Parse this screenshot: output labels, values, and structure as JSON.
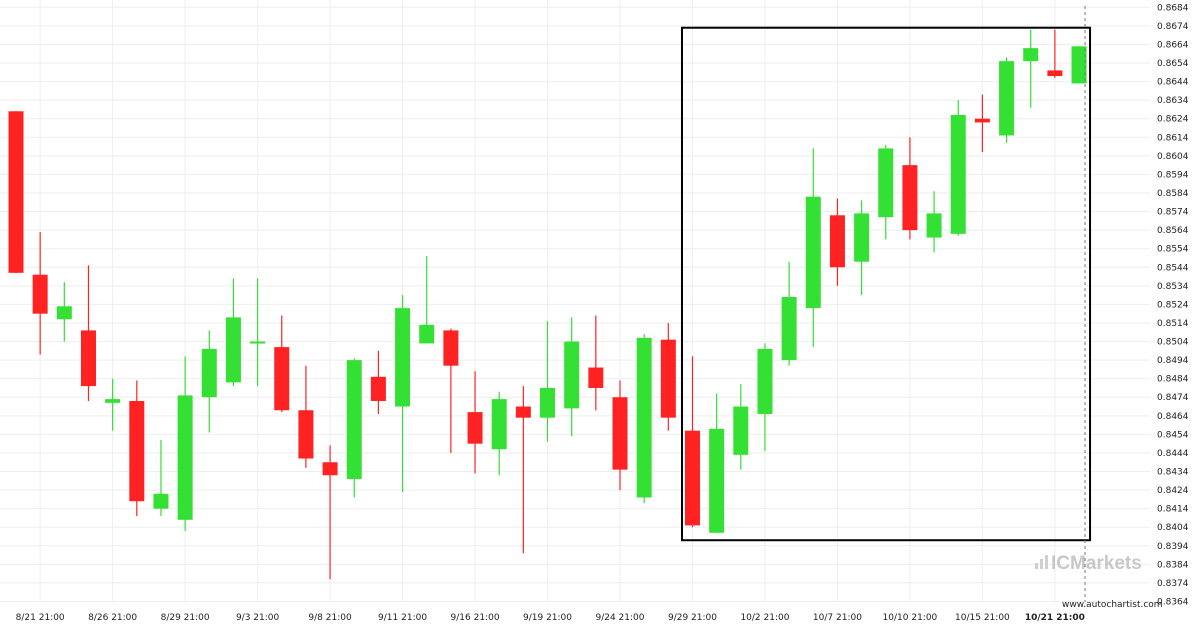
{
  "chart_data": {
    "type": "candlestick",
    "yaxis": {
      "position": "right",
      "ticks": [
        "0.8364",
        "0.8374",
        "0.8384",
        "0.8394",
        "0.8404",
        "0.8414",
        "0.8424",
        "0.8434",
        "0.8444",
        "0.8454",
        "0.8464",
        "0.8474",
        "0.8484",
        "0.8494",
        "0.8504",
        "0.8514",
        "0.8524",
        "0.8534",
        "0.8544",
        "0.8554",
        "0.8564",
        "0.8574",
        "0.8584",
        "0.8594",
        "0.8604",
        "0.8614",
        "0.8624",
        "0.8634",
        "0.8644",
        "0.8654",
        "0.8664",
        "0.8674",
        "0.8684"
      ],
      "range": [
        0.8364,
        0.8684
      ]
    },
    "xaxis": {
      "ticks": [
        {
          "label": "8/21 21:00",
          "index": 1
        },
        {
          "label": "8/26 21:00",
          "index": 4
        },
        {
          "label": "8/29 21:00",
          "index": 7
        },
        {
          "label": "9/3 21:00",
          "index": 10
        },
        {
          "label": "9/8 21:00",
          "index": 13
        },
        {
          "label": "9/11 21:00",
          "index": 16
        },
        {
          "label": "9/16 21:00",
          "index": 19
        },
        {
          "label": "9/19 21:00",
          "index": 22
        },
        {
          "label": "9/24 21:00",
          "index": 25
        },
        {
          "label": "9/29 21:00",
          "index": 28
        },
        {
          "label": "10/2 21:00",
          "index": 31
        },
        {
          "label": "10/7 21:00",
          "index": 34
        },
        {
          "label": "10/10 21:00",
          "index": 37
        },
        {
          "label": "10/15 21:00",
          "index": 40
        },
        {
          "label": "10/21 21:00",
          "index": 43,
          "bold": true
        }
      ]
    },
    "grid": true,
    "candles": [
      {
        "o": 0.8628,
        "h": 0.8628,
        "l": 0.8541,
        "c": 0.8541
      },
      {
        "o": 0.854,
        "h": 0.8563,
        "l": 0.8497,
        "c": 0.8519
      },
      {
        "o": 0.8516,
        "h": 0.8536,
        "l": 0.8504,
        "c": 0.8523
      },
      {
        "o": 0.851,
        "h": 0.8545,
        "l": 0.8472,
        "c": 0.848
      },
      {
        "o": 0.8471,
        "h": 0.8484,
        "l": 0.8456,
        "c": 0.8473
      },
      {
        "o": 0.8472,
        "h": 0.8483,
        "l": 0.841,
        "c": 0.8418
      },
      {
        "o": 0.8414,
        "h": 0.8451,
        "l": 0.841,
        "c": 0.8422
      },
      {
        "o": 0.8408,
        "h": 0.8496,
        "l": 0.8402,
        "c": 0.8475
      },
      {
        "o": 0.8474,
        "h": 0.851,
        "l": 0.8455,
        "c": 0.85
      },
      {
        "o": 0.8482,
        "h": 0.8538,
        "l": 0.848,
        "c": 0.8517
      },
      {
        "o": 0.8504,
        "h": 0.8538,
        "l": 0.848,
        "c": 0.8504
      },
      {
        "o": 0.8501,
        "h": 0.8518,
        "l": 0.8466,
        "c": 0.8467
      },
      {
        "o": 0.8467,
        "h": 0.8491,
        "l": 0.8436,
        "c": 0.8441
      },
      {
        "o": 0.8439,
        "h": 0.8448,
        "l": 0.8376,
        "c": 0.8432
      },
      {
        "o": 0.843,
        "h": 0.8495,
        "l": 0.842,
        "c": 0.8494
      },
      {
        "o": 0.8485,
        "h": 0.8499,
        "l": 0.8465,
        "c": 0.8472
      },
      {
        "o": 0.8469,
        "h": 0.8529,
        "l": 0.8423,
        "c": 0.8522
      },
      {
        "o": 0.8503,
        "h": 0.855,
        "l": 0.8503,
        "c": 0.8513
      },
      {
        "o": 0.851,
        "h": 0.8511,
        "l": 0.8444,
        "c": 0.8491
      },
      {
        "o": 0.8466,
        "h": 0.8488,
        "l": 0.8433,
        "c": 0.8449
      },
      {
        "o": 0.8446,
        "h": 0.8477,
        "l": 0.8432,
        "c": 0.8473
      },
      {
        "o": 0.8469,
        "h": 0.848,
        "l": 0.839,
        "c": 0.8463
      },
      {
        "o": 0.8463,
        "h": 0.8515,
        "l": 0.845,
        "c": 0.8479
      },
      {
        "o": 0.8468,
        "h": 0.8517,
        "l": 0.8453,
        "c": 0.8504
      },
      {
        "o": 0.849,
        "h": 0.8518,
        "l": 0.8467,
        "c": 0.8479
      },
      {
        "o": 0.8474,
        "h": 0.8483,
        "l": 0.8424,
        "c": 0.8435
      },
      {
        "o": 0.842,
        "h": 0.8508,
        "l": 0.8417,
        "c": 0.8506
      },
      {
        "o": 0.8505,
        "h": 0.8514,
        "l": 0.8456,
        "c": 0.8463
      },
      {
        "o": 0.8456,
        "h": 0.8496,
        "l": 0.8404,
        "c": 0.8405
      },
      {
        "o": 0.8401,
        "h": 0.8476,
        "l": 0.8401,
        "c": 0.8457
      },
      {
        "o": 0.8443,
        "h": 0.8481,
        "l": 0.8435,
        "c": 0.8469
      },
      {
        "o": 0.8465,
        "h": 0.8503,
        "l": 0.8445,
        "c": 0.85
      },
      {
        "o": 0.8494,
        "h": 0.8547,
        "l": 0.8491,
        "c": 0.8528
      },
      {
        "o": 0.8522,
        "h": 0.8608,
        "l": 0.8501,
        "c": 0.8582
      },
      {
        "o": 0.8572,
        "h": 0.8581,
        "l": 0.8534,
        "c": 0.8544
      },
      {
        "o": 0.8547,
        "h": 0.858,
        "l": 0.8529,
        "c": 0.8573
      },
      {
        "o": 0.8571,
        "h": 0.861,
        "l": 0.8559,
        "c": 0.8608
      },
      {
        "o": 0.8599,
        "h": 0.8614,
        "l": 0.8559,
        "c": 0.8564
      },
      {
        "o": 0.856,
        "h": 0.8585,
        "l": 0.8552,
        "c": 0.8573
      },
      {
        "o": 0.8562,
        "h": 0.8634,
        "l": 0.8561,
        "c": 0.8626
      },
      {
        "o": 0.8624,
        "h": 0.8637,
        "l": 0.8606,
        "c": 0.8622
      },
      {
        "o": 0.8615,
        "h": 0.8657,
        "l": 0.8611,
        "c": 0.8655
      },
      {
        "o": 0.8655,
        "h": 0.8672,
        "l": 0.863,
        "c": 0.8662
      },
      {
        "o": 0.865,
        "h": 0.8672,
        "l": 0.8646,
        "c": 0.8647
      },
      {
        "o": 0.8643,
        "h": 0.8663,
        "l": 0.8643,
        "c": 0.8663
      }
    ],
    "highlight_box": {
      "start_index": 28,
      "end_index": 44,
      "y_top": 0.8673,
      "y_bottom": 0.8397
    },
    "colors": {
      "up": "#33e033",
      "down": "#ff2222",
      "box": "#000000",
      "grid": "#eeeeee"
    }
  },
  "watermark": {
    "brand": "ICMarkets",
    "logo_icon": "bar-chart-icon"
  },
  "source": "www.autochartist.com"
}
